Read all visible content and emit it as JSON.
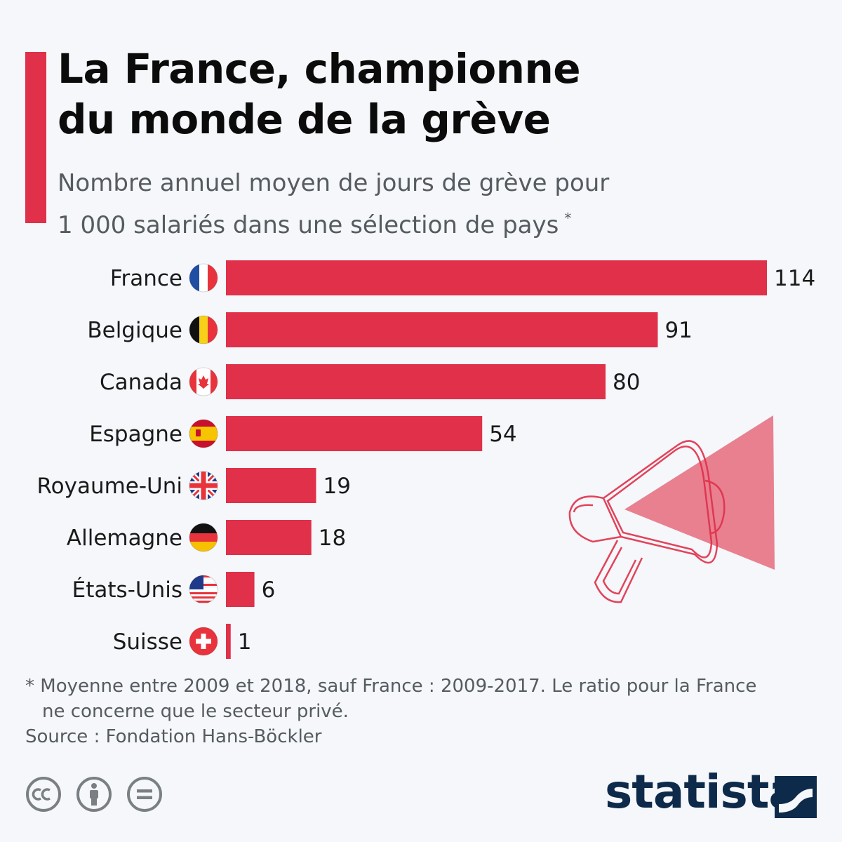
{
  "header": {
    "title_line1": "La France, championne",
    "title_line2": "du monde de la grève",
    "subtitle_line1": "Nombre annuel moyen de jours de grève pour",
    "subtitle_line2": "1 000 salariés dans une sélection de pays",
    "subtitle_mark": "*"
  },
  "chart_data": {
    "type": "bar",
    "orientation": "horizontal",
    "title": "La France, championne du monde de la grève",
    "subtitle": "Nombre annuel moyen de jours de grève pour 1 000 salariés dans une sélection de pays *",
    "categories": [
      "France",
      "Belgique",
      "Canada",
      "Espagne",
      "Royaume-Uni",
      "Allemagne",
      "États-Unis",
      "Suisse"
    ],
    "values": [
      114,
      91,
      80,
      54,
      19,
      18,
      6,
      1
    ],
    "flags": [
      "flag-france-icon",
      "flag-belgium-icon",
      "flag-canada-icon",
      "flag-spain-icon",
      "flag-uk-icon",
      "flag-germany-icon",
      "flag-usa-icon",
      "flag-switzerland-icon"
    ],
    "xlim": [
      0,
      114
    ],
    "grid": false,
    "bar_color": "#e0304a"
  },
  "footer": {
    "note_line1": "* Moyenne entre 2009 et 2018, sauf France : 2009-2017. Le ratio pour la France",
    "note_line2": "ne concerne que le secteur privé.",
    "source": "Source : Fondation Hans-Böckler",
    "brand": "statista"
  },
  "colors": {
    "accent": "#e0304a",
    "brand": "#0d2a4a",
    "background": "#f5f7fa"
  }
}
